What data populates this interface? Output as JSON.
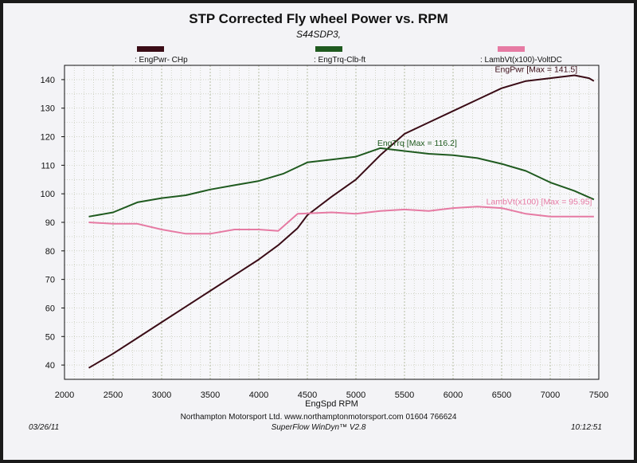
{
  "title": "STP Corrected Fly wheel Power vs. RPM",
  "subtitle": "S44SDP3,",
  "legend": [
    {
      "label": ": EngPwr- CHp",
      "color": "#3a0c16"
    },
    {
      "label": ": EngTrq-Clb-ft",
      "color": "#1f5a1f"
    },
    {
      "label": ": LambVt(x100)-VoltDC",
      "color": "#e67aa3"
    }
  ],
  "footer": {
    "date": "03/26/11",
    "company": "Northampton Motorsport Ltd. www.northamptonmotorsport.com 01604 766624",
    "software": "SuperFlow WinDyn™ V2.8",
    "time": "10:12:51"
  },
  "chart_data": {
    "type": "line",
    "title": "STP Corrected Fly wheel Power vs. RPM",
    "subtitle": "S44SDP3,",
    "xlabel": "EngSpd  RPM",
    "ylabel": "",
    "xlim": [
      2000,
      7500
    ],
    "ylim": [
      35,
      145
    ],
    "xticks": [
      2000,
      2500,
      3000,
      3500,
      4000,
      4500,
      5000,
      5500,
      6000,
      6500,
      7000,
      7500
    ],
    "yticks": [
      40,
      50,
      60,
      70,
      80,
      90,
      100,
      110,
      120,
      130,
      140
    ],
    "grid": true,
    "series": [
      {
        "name": "EngPwr- CHp",
        "color": "#3a0c16",
        "annotation": "EngPwr [Max = 141.5]",
        "points": [
          [
            2250,
            39
          ],
          [
            2500,
            44
          ],
          [
            2750,
            49.5
          ],
          [
            3000,
            55
          ],
          [
            3250,
            60.5
          ],
          [
            3500,
            66
          ],
          [
            3750,
            71.5
          ],
          [
            4000,
            77
          ],
          [
            4200,
            82
          ],
          [
            4400,
            88
          ],
          [
            4500,
            92.5
          ],
          [
            4750,
            99
          ],
          [
            5000,
            105
          ],
          [
            5250,
            113.5
          ],
          [
            5500,
            121
          ],
          [
            5750,
            125
          ],
          [
            6000,
            129
          ],
          [
            6250,
            133
          ],
          [
            6500,
            137
          ],
          [
            6750,
            139.5
          ],
          [
            7000,
            140.5
          ],
          [
            7250,
            141.5
          ],
          [
            7400,
            140.5
          ],
          [
            7450,
            139.5
          ]
        ]
      },
      {
        "name": "EngTrq-Clb-ft",
        "color": "#1f5a1f",
        "annotation": "EngTrq [Max = 116.2]",
        "points": [
          [
            2250,
            92
          ],
          [
            2500,
            93.5
          ],
          [
            2750,
            97
          ],
          [
            3000,
            98.5
          ],
          [
            3250,
            99.5
          ],
          [
            3500,
            101.5
          ],
          [
            3750,
            103
          ],
          [
            4000,
            104.5
          ],
          [
            4250,
            107
          ],
          [
            4500,
            111
          ],
          [
            4750,
            112
          ],
          [
            5000,
            113
          ],
          [
            5250,
            116
          ],
          [
            5500,
            115
          ],
          [
            5750,
            114
          ],
          [
            6000,
            113.5
          ],
          [
            6250,
            112.5
          ],
          [
            6500,
            110.5
          ],
          [
            6750,
            108
          ],
          [
            7000,
            104
          ],
          [
            7250,
            101
          ],
          [
            7450,
            98
          ]
        ]
      },
      {
        "name": "LambVt(x100)-VoltDC",
        "color": "#e67aa3",
        "annotation": "LambVt(x100) [Max = 95.95]",
        "points": [
          [
            2250,
            90
          ],
          [
            2500,
            89.5
          ],
          [
            2750,
            89.5
          ],
          [
            3000,
            87.5
          ],
          [
            3250,
            86
          ],
          [
            3500,
            86
          ],
          [
            3750,
            87.5
          ],
          [
            4000,
            87.5
          ],
          [
            4200,
            87
          ],
          [
            4400,
            93
          ],
          [
            4750,
            93.5
          ],
          [
            5000,
            93
          ],
          [
            5250,
            94
          ],
          [
            5500,
            94.5
          ],
          [
            5750,
            94
          ],
          [
            6000,
            95
          ],
          [
            6250,
            95.5
          ],
          [
            6500,
            95
          ],
          [
            6750,
            93
          ],
          [
            7000,
            92
          ],
          [
            7250,
            92
          ],
          [
            7450,
            92
          ]
        ]
      }
    ]
  }
}
